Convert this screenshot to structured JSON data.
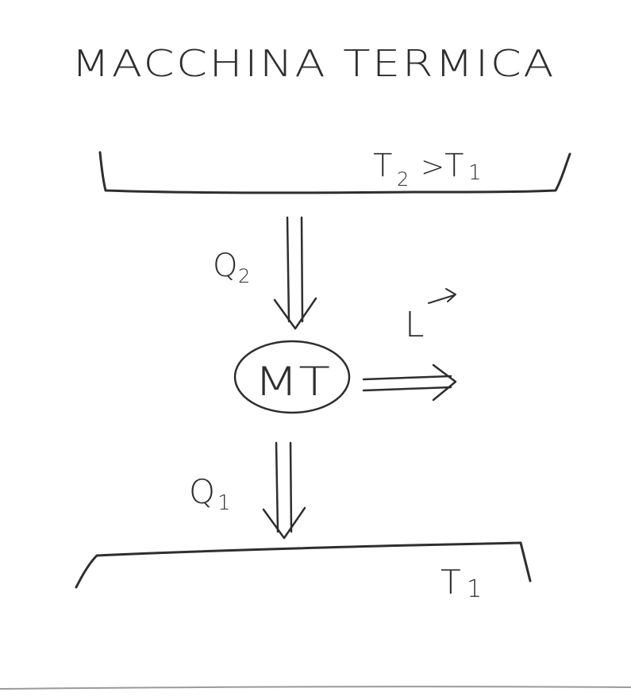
{
  "title": "MACCHINA TERMICA",
  "hot_reservoir": {
    "label": "T",
    "subscript_left": "2",
    "relation": ">",
    "label_right": "T",
    "subscript_right": "1"
  },
  "heat_in": {
    "label": "Q",
    "subscript": "2"
  },
  "engine": {
    "label": "MT"
  },
  "work": {
    "label": "L"
  },
  "heat_out": {
    "label": "Q",
    "subscript": "1"
  },
  "cold_reservoir": {
    "label": "T",
    "subscript": "1"
  },
  "colors": {
    "ink": "#2e2e2e",
    "paper": "#ffffff"
  }
}
